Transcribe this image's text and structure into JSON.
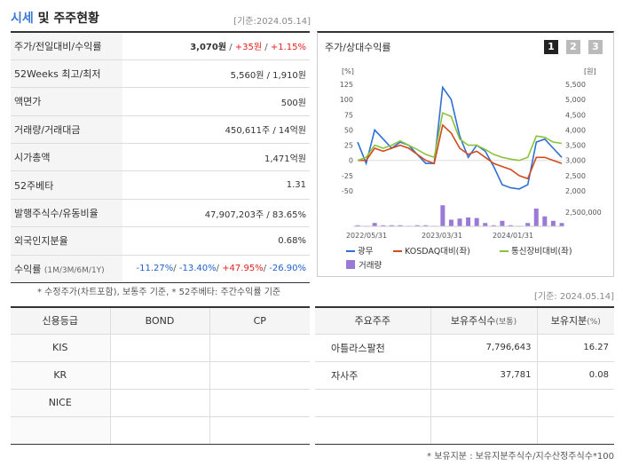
{
  "header": {
    "title_accent": "시세",
    "title_rest": " 및 주주현황",
    "base_date": "[기준:2024.05.14]"
  },
  "price_table": {
    "rows": [
      {
        "label": "주가/전일대비/수익률",
        "price": "3,070원",
        "change": "+35원",
        "pct": "+1.15%"
      },
      {
        "label": "52Weeks 최고/최저",
        "value": "5,560원 / 1,910원"
      },
      {
        "label": "액면가",
        "value": "500원"
      },
      {
        "label": "거래량/거래대금",
        "value": "450,611주 / 14억원"
      },
      {
        "label": "시가총액",
        "value": "1,471억원"
      },
      {
        "label": "52주베타",
        "value": "1.31"
      },
      {
        "label": "발행주식수/유동비율",
        "value": "47,907,203주 / 83.65%"
      },
      {
        "label": "외국인지분율",
        "value": "0.68%"
      },
      {
        "label": "수익률",
        "label_sub": "(1M/3M/6M/1Y)",
        "r1m": "-11.27%",
        "r3m": "-13.40%",
        "r6m": "+47.95%",
        "r1y": "-26.90%"
      }
    ],
    "note": "* 수정주가(차트포함), 보통주 기준, * 52주베타: 주간수익률 기준"
  },
  "chart_panel": {
    "title": "주가/상대수익률",
    "tabs": [
      "1",
      "2",
      "3"
    ],
    "active_tab": "1"
  },
  "chart_data": {
    "type": "line",
    "left_unit": "[%]",
    "right_unit": "[원]",
    "left_ticks": [
      "125",
      "100",
      "75",
      "50",
      "25",
      "0",
      "-25",
      "-50"
    ],
    "right_ticks": [
      "5,500",
      "5,000",
      "4,500",
      "4,000",
      "3,500",
      "3,000",
      "2,500",
      "2,000"
    ],
    "volume_tick": "2,500,000",
    "x_labels": [
      "2022/05/31",
      "2023/03/31",
      "2024/01/31"
    ],
    "ylim_left": [
      -50,
      125
    ],
    "series": [
      {
        "name": "광무",
        "color": "#2f6fd6",
        "values": [
          30,
          -5,
          50,
          35,
          20,
          30,
          25,
          10,
          -5,
          -5,
          120,
          100,
          40,
          5,
          25,
          15,
          -10,
          -40,
          -45,
          -47,
          -40,
          30,
          35,
          20,
          5
        ]
      },
      {
        "name": "KOSDAQ대비(좌)",
        "color": "#d24a1e",
        "values": [
          0,
          0,
          20,
          15,
          20,
          25,
          20,
          10,
          0,
          -5,
          58,
          45,
          20,
          10,
          15,
          5,
          -5,
          -10,
          -15,
          -25,
          -30,
          5,
          5,
          0,
          -5
        ]
      },
      {
        "name": "통신장비대비(좌)",
        "color": "#8cc33c",
        "values": [
          0,
          5,
          25,
          20,
          25,
          32,
          25,
          18,
          10,
          5,
          78,
          72,
          35,
          25,
          25,
          18,
          10,
          5,
          2,
          0,
          5,
          40,
          38,
          30,
          28
        ]
      }
    ],
    "volume": {
      "name": "거래량",
      "color": "#9a7ad6",
      "values": [
        0.1,
        0.05,
        0.3,
        0.1,
        0.1,
        0.1,
        0.05,
        0.1,
        0.1,
        0.05,
        1.9,
        0.6,
        0.7,
        0.8,
        0.75,
        0.3,
        0.1,
        0.5,
        0.1,
        0.05,
        0.3,
        1.6,
        0.9,
        0.5,
        0.3
      ]
    }
  },
  "base_date2": "[기준: 2024.05.14]",
  "credit_table": {
    "headers": [
      "신용등급",
      "BOND",
      "CP"
    ],
    "rows": [
      {
        "agency": "KIS",
        "bond": "",
        "cp": ""
      },
      {
        "agency": "KR",
        "bond": "",
        "cp": ""
      },
      {
        "agency": "NICE",
        "bond": "",
        "cp": ""
      },
      {
        "agency": "",
        "bond": "",
        "cp": ""
      }
    ]
  },
  "holders_table": {
    "headers": [
      "주요주주",
      "보유주식수",
      "보유지분"
    ],
    "header_subs": [
      "",
      "(보통)",
      "(%)"
    ],
    "rows": [
      {
        "name": "아틀라스팔천",
        "shares": "7,796,643",
        "pct": "16.27"
      },
      {
        "name": "자사주",
        "shares": "37,781",
        "pct": "0.08"
      },
      {
        "name": "",
        "shares": "",
        "pct": ""
      },
      {
        "name": "",
        "shares": "",
        "pct": ""
      }
    ],
    "note": "* 보유지분 : 보유지분주식수/지수산정주식수*100"
  }
}
